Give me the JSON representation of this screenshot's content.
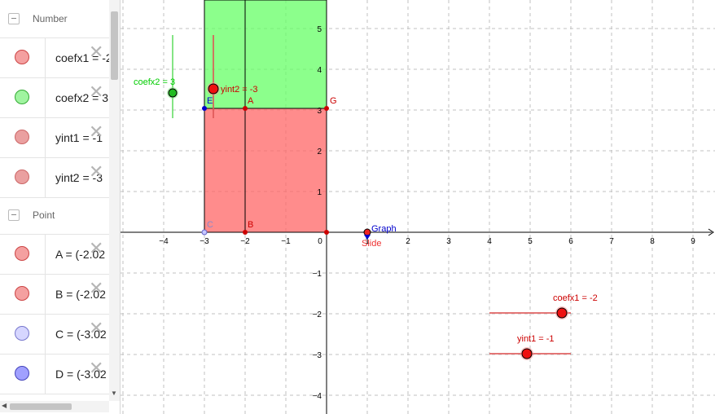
{
  "algebra": {
    "sections": [
      {
        "title": "Number",
        "items": [
          {
            "text": "coefx1 = -2",
            "color": "#f08080",
            "border": "#c33"
          },
          {
            "text": "coefx2 = 3",
            "color": "#90ee90",
            "border": "#2a2"
          },
          {
            "text": "yint1 = -1",
            "color": "#f4a0a0",
            "border": "#c55"
          },
          {
            "text": "yint2 = -3",
            "color": "#f4a0a0",
            "border": "#c55"
          }
        ]
      },
      {
        "title": "Point",
        "items": [
          {
            "text": "A = (-2.02",
            "color": "#f08080",
            "border": "#c33"
          },
          {
            "text": "B = (-2.02",
            "color": "#f08080",
            "border": "#c33"
          },
          {
            "text": "C = (-3.02",
            "color": "#c8c8ff",
            "border": "#66c"
          },
          {
            "text": "D = (-3.02",
            "color": "#9999ff",
            "border": "#44b"
          }
        ]
      }
    ]
  },
  "graph": {
    "x_ticks": [
      "−4",
      "−3",
      "−2",
      "−1",
      "0",
      "1",
      "2",
      "3",
      "4",
      "5",
      "6",
      "7",
      "8",
      "9"
    ],
    "y_ticks_pos": [
      "1",
      "2",
      "3",
      "4",
      "5"
    ],
    "y_ticks_neg": [
      "−1",
      "−2",
      "−3",
      "−4"
    ],
    "points": {
      "A": "A",
      "B": "B",
      "C": "C",
      "E": "E",
      "G": "G"
    },
    "graph_label": "Graph",
    "slide_label": "Slide",
    "sliders": {
      "coefx2": {
        "label": "coefx2 = 3",
        "value": 3
      },
      "yint2": {
        "label": "yint2 = -3",
        "value": -3
      },
      "coefx1": {
        "label": "coefx1 = -2",
        "value": -2
      },
      "yint1": {
        "label": "yint1 = -1",
        "value": -1
      }
    },
    "colors": {
      "green": "#66ff66",
      "red": "#ff6666",
      "blue": "#0000cc",
      "redpt": "#cc0000"
    }
  }
}
